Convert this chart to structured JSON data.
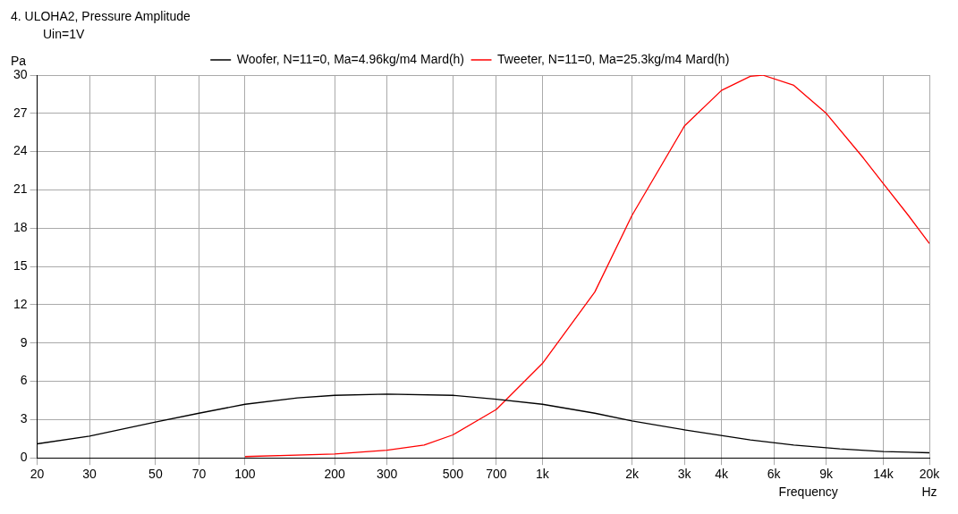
{
  "chart_data": {
    "type": "line",
    "title": "4. ULOHA2, Pressure Amplitude",
    "xlabel": "Frequency",
    "ylabel": "Pa",
    "annotations": [
      "Uin=1V",
      "Hz"
    ],
    "log": "x",
    "grid": true,
    "legend": "top",
    "marker": "none",
    "line_style": "solid",
    "xlim": [
      20,
      20000
    ],
    "xticks": [
      20,
      30,
      50,
      70,
      100,
      200,
      300,
      500,
      700,
      {
        "value": 1000,
        "label": "1k"
      },
      {
        "value": 2000,
        "label": "2k"
      },
      {
        "value": 3000,
        "label": "3k"
      },
      {
        "value": 4000,
        "label": "4k"
      },
      {
        "value": 6000,
        "label": "6k"
      },
      {
        "value": 9000,
        "label": "9k"
      },
      {
        "value": 14000,
        "label": "14k"
      },
      {
        "value": 20000,
        "label": "20k"
      }
    ],
    "ylim": [
      0,
      30
    ],
    "yticks": [
      0,
      3,
      6,
      9,
      12,
      15,
      18,
      21,
      24,
      27,
      30
    ],
    "series": [
      {
        "name": "Woofer, N=11=0, Ma=4.96kg/m4 Mard(h)",
        "color": "#000000",
        "x": [
          20,
          30,
          50,
          70,
          100,
          150,
          200,
          300,
          500,
          700,
          1000,
          1500,
          2000,
          3000,
          5000,
          7000,
          10000,
          14000,
          20000
        ],
        "values": [
          1.1,
          1.7,
          2.8,
          3.5,
          4.2,
          4.7,
          4.9,
          5.0,
          4.9,
          4.6,
          4.2,
          3.5,
          2.9,
          2.2,
          1.4,
          1.0,
          0.7,
          0.5,
          0.4
        ]
      },
      {
        "name": "Tweeter, N=11=0, Ma=25.3kg/m4 Mard(h)",
        "color": "#ff0000",
        "x": [
          100,
          200,
          300,
          400,
          500,
          700,
          1000,
          1500,
          2000,
          3000,
          4000,
          5000,
          5500,
          7000,
          9000,
          12000,
          14000,
          17000,
          20000
        ],
        "values": [
          0.1,
          0.3,
          0.6,
          1.0,
          1.8,
          3.8,
          7.4,
          13,
          19,
          26,
          28.8,
          29.9,
          30,
          29.2,
          27,
          23.5,
          21.5,
          19,
          16.8
        ]
      }
    ]
  }
}
